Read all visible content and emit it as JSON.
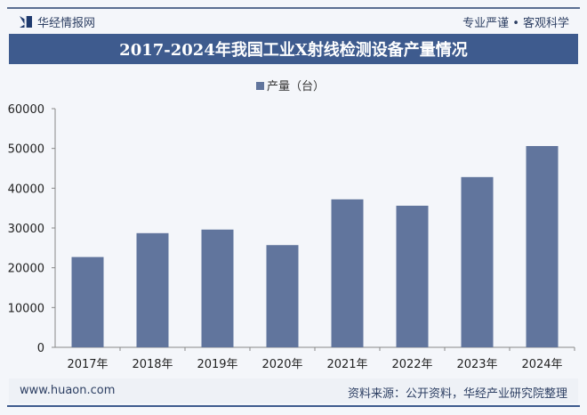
{
  "header": {
    "brand": "华经情报网",
    "slogan": "专业严谨 • 客观科学",
    "title": "2017-2024年我国工业X射线检测设备产量情况"
  },
  "footer": {
    "url": "www.huaon.com",
    "source": "资料来源：公开资料，华经产业研究院整理"
  },
  "colors": {
    "bar": "#61759d",
    "title_bg": "#3e5b8e"
  },
  "chart_data": {
    "type": "bar",
    "title": "2017-2024年我国工业X射线检测设备产量情况",
    "categories": [
      "2017年",
      "2018年",
      "2019年",
      "2020年",
      "2021年",
      "2022年",
      "2023年",
      "2024年"
    ],
    "series": [
      {
        "name": "产量（台）",
        "values": [
          22700,
          28700,
          29600,
          25700,
          37200,
          35600,
          42800,
          50600
        ]
      }
    ],
    "ylim": [
      0,
      60000
    ],
    "yticks": [
      "0",
      "10000",
      "20000",
      "30000",
      "40000",
      "50000",
      "60000"
    ],
    "grid": false,
    "legend": "top-center"
  }
}
